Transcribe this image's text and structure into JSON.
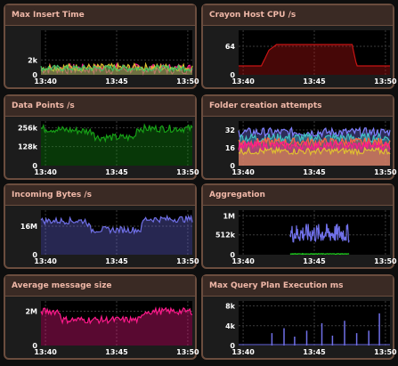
{
  "chart_data": [
    {
      "type": "area",
      "title": "Max Insert Time",
      "x": [
        "13:40",
        "13:45",
        "13:50"
      ],
      "y_ticks": [
        "0",
        "2k"
      ],
      "ylim": [
        0,
        6000
      ],
      "series": [
        {
          "color": "#ff1a8c",
          "level": 800,
          "noise": 700
        },
        {
          "color": "#e0c030",
          "level": 1000,
          "noise": 500
        },
        {
          "color": "#40c060",
          "level": 900,
          "noise": 400
        }
      ],
      "grid": true
    },
    {
      "type": "area",
      "title": "Crayon Host CPU /s",
      "x": [
        "13:40",
        "13:45",
        "13:50"
      ],
      "y_ticks": [
        "0",
        "64"
      ],
      "ylim": [
        0,
        100
      ],
      "series": [
        {
          "color": "#c81414",
          "steps": [
            [
              0,
              20
            ],
            [
              0.15,
              20
            ],
            [
              0.2,
              55
            ],
            [
              0.25,
              68
            ],
            [
              0.75,
              68
            ],
            [
              0.78,
              20
            ],
            [
              1,
              20
            ]
          ]
        }
      ],
      "grid": true
    },
    {
      "type": "area",
      "title": "Data Points /s",
      "x": [
        "13:40",
        "13:45",
        "13:50"
      ],
      "y_ticks": [
        "0",
        "128k",
        "256k"
      ],
      "ylim": [
        0,
        300000
      ],
      "series": [
        {
          "color": "#17a017",
          "steps": [
            [
              0,
              250000
            ],
            [
              0.35,
              230000
            ],
            [
              0.36,
              190000
            ],
            [
              0.62,
              190000
            ],
            [
              0.63,
              250000
            ],
            [
              1,
              250000
            ]
          ],
          "noise": 25000
        }
      ],
      "grid": true
    },
    {
      "type": "area",
      "title": "Folder creation attempts",
      "x": [
        "13:40",
        "13:45",
        "13:50"
      ],
      "y_ticks": [
        "0",
        "16",
        "32"
      ],
      "ylim": [
        0,
        40
      ],
      "series": [
        {
          "color": "#8080ff",
          "level": 30,
          "noise": 4
        },
        {
          "color": "#40c0c0",
          "level": 25,
          "noise": 4
        },
        {
          "color": "#ff6040",
          "level": 21,
          "noise": 4
        },
        {
          "color": "#ff1a8c",
          "level": 18,
          "noise": 4
        },
        {
          "color": "#e0c030",
          "level": 13,
          "noise": 3
        }
      ],
      "grid": true
    },
    {
      "type": "area",
      "title": "Incoming Bytes /s",
      "x": [
        "13:40",
        "13:45",
        "13:50"
      ],
      "y_ticks": [
        "0",
        "16M"
      ],
      "ylim": [
        0,
        25000000
      ],
      "series": [
        {
          "color": "#7070e8",
          "steps": [
            [
              0,
              19000000
            ],
            [
              0.3,
              19000000
            ],
            [
              0.33,
              14000000
            ],
            [
              0.66,
              14000000
            ],
            [
              0.68,
              20000000
            ],
            [
              1,
              20000000
            ]
          ],
          "noise": 1800000
        }
      ],
      "grid": true
    },
    {
      "type": "line",
      "title": "Aggregation",
      "x": [
        "13:40",
        "13:45",
        "13:50"
      ],
      "y_ticks": [
        "0",
        "512k",
        "1M"
      ],
      "ylim": [
        0,
        1150000
      ],
      "series": [
        {
          "color": "#7070e8",
          "range": [
            0.34,
            0.73
          ],
          "level": 550000,
          "noise": 250000
        },
        {
          "color": "#20d020",
          "range": [
            0.34,
            0.73
          ],
          "level": 20000,
          "noise": 8000
        }
      ],
      "grid": true
    },
    {
      "type": "area",
      "title": "Average message size",
      "x": [
        "13:40",
        "13:45",
        "13:50"
      ],
      "y_ticks": [
        "0",
        "2M"
      ],
      "ylim": [
        0,
        2600000
      ],
      "series": [
        {
          "color": "#ff1a8c",
          "steps": [
            [
              0,
              2000000
            ],
            [
              0.12,
              2000000
            ],
            [
              0.14,
              1500000
            ],
            [
              0.66,
              1500000
            ],
            [
              0.68,
              2000000
            ],
            [
              1,
              2000000
            ]
          ],
          "noise": 200000
        }
      ],
      "grid": true
    },
    {
      "type": "line",
      "title": "Max Query Plan Execution ms",
      "x": [
        "13:40",
        "13:45",
        "13:50"
      ],
      "y_ticks": [
        "0",
        "4k",
        "8k"
      ],
      "ylim": [
        0,
        9000
      ],
      "series": [
        {
          "color": "#7070e8",
          "spikes": [
            0.22,
            0.3,
            0.37,
            0.45,
            0.55,
            0.62,
            0.7,
            0.78,
            0.86,
            0.93
          ],
          "spike_vals": [
            2500,
            3500,
            1800,
            3000,
            4500,
            2000,
            5000,
            2500,
            3000,
            6500
          ]
        }
      ],
      "grid": true
    }
  ]
}
